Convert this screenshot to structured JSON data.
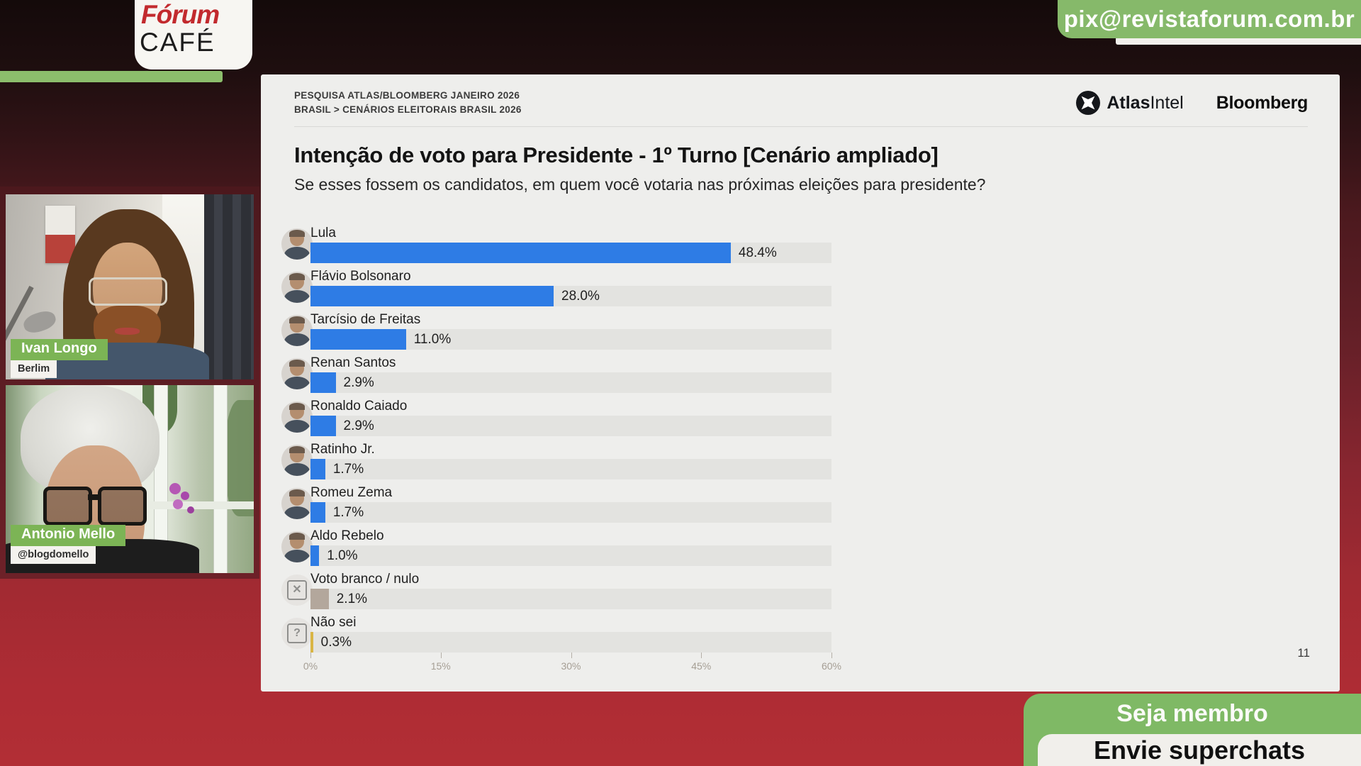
{
  "stream": {
    "logo": {
      "line1": "Fórum",
      "line2": "CAFÉ"
    },
    "pix_badge": "pix@revistaforum.com.br",
    "membership_button": "Seja membro",
    "superchat_button": "Envie superchats",
    "speakers": [
      {
        "name": "Ivan Longo",
        "subtitle": "Berlim"
      },
      {
        "name": "Antonio Mello",
        "subtitle": "@blogdomello"
      }
    ]
  },
  "slide": {
    "kicker_line1": "PESQUISA ATLAS/BLOOMBERG JANEIRO 2026",
    "kicker_line2": "BRASIL > CENÁRIOS ELEITORAIS BRASIL 2026",
    "brands": {
      "atlas_bold": "Atlas",
      "atlas_regular": "Intel",
      "bloomberg": "Bloomberg"
    },
    "title": "Intenção de voto para Presidente - 1º Turno [Cenário ampliado]",
    "subtitle": "Se esses fossem os candidatos, em quem você votaria nas próximas eleições para presidente?",
    "page_number": "11"
  },
  "chart_data": {
    "type": "bar",
    "orientation": "horizontal",
    "title": "Intenção de voto para Presidente - 1º Turno [Cenário ampliado]",
    "categories": [
      "Lula",
      "Flávio Bolsonaro",
      "Tarcísio de Freitas",
      "Renan Santos",
      "Ronaldo Caiado",
      "Ratinho Jr.",
      "Romeu Zema",
      "Aldo Rebelo",
      "Voto branco / nulo",
      "Não sei"
    ],
    "values": [
      48.4,
      28.0,
      11.0,
      2.9,
      2.9,
      1.7,
      1.7,
      1.0,
      2.1,
      0.3
    ],
    "labels": [
      "48.4%",
      "28.0%",
      "11.0%",
      "2.9%",
      "2.9%",
      "1.7%",
      "1.7%",
      "1.0%",
      "2.1%",
      "0.3%"
    ],
    "colors": [
      "#2e7ce5",
      "#2e7ce5",
      "#2e7ce5",
      "#2e7ce5",
      "#2e7ce5",
      "#2e7ce5",
      "#2e7ce5",
      "#2e7ce5",
      "#b3a79c",
      "#d9b544"
    ],
    "avatar_kinds": [
      "photo",
      "photo",
      "photo",
      "photo",
      "photo",
      "photo",
      "photo",
      "photo",
      "icon-x",
      "icon-question"
    ],
    "icon_glyphs": {
      "icon-x": "✕",
      "icon-question": "?"
    },
    "xlim": [
      0,
      60
    ],
    "x_ticks": [
      "0%",
      "15%",
      "30%",
      "45%",
      "60%"
    ],
    "grid": false,
    "legend": false
  },
  "colors": {
    "background_red": "#ae2c34",
    "dark_maroon": "#4c191e",
    "panel_gray": "#eeeeec",
    "bar_blue": "#2e7ce5",
    "bar_blank": "#b3a79c",
    "bar_unsure": "#d9b544",
    "brand_green": "#7fb965",
    "nameplate_green": "#7cb455"
  }
}
